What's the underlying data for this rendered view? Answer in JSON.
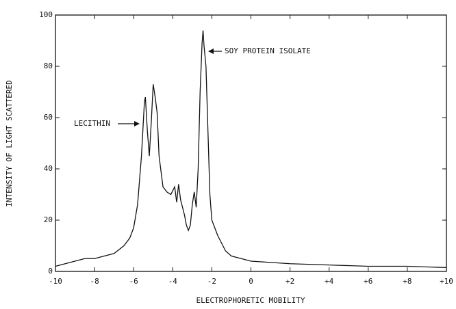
{
  "chart_data": {
    "type": "line",
    "xlabel": "ELECTROPHORETIC MOBILITY",
    "ylabel": "INTENSITY OF LIGHT SCATTERED",
    "annotations": [
      "LECITHIN",
      "SOY PROTEIN ISOLATE"
    ],
    "x": [
      -10,
      -9.5,
      -9,
      -8.5,
      -8,
      -7.5,
      -7,
      -6.5,
      -6.2,
      -6,
      -5.8,
      -5.6,
      -5.45,
      -5.4,
      -5.3,
      -5.2,
      -5.1,
      -5.0,
      -4.9,
      -4.8,
      -4.7,
      -4.5,
      -4.3,
      -4.1,
      -3.9,
      -3.8,
      -3.7,
      -3.6,
      -3.5,
      -3.4,
      -3.3,
      -3.2,
      -3.1,
      -3.0,
      -2.9,
      -2.8,
      -2.7,
      -2.6,
      -2.5,
      -2.45,
      -2.4,
      -2.3,
      -2.2,
      -2.1,
      -2,
      -1.7,
      -1.3,
      -1,
      -0.5,
      0,
      1,
      2,
      4,
      6,
      8,
      10
    ],
    "series": [
      {
        "color": "#111111",
        "values": [
          2,
          3,
          4,
          5,
          5,
          6,
          7,
          10,
          13,
          17,
          26,
          45,
          66,
          68,
          55,
          45,
          58,
          73,
          68,
          62,
          45,
          33,
          31,
          30,
          33,
          27,
          34,
          28,
          25,
          22,
          18,
          16,
          18,
          26,
          31,
          25,
          40,
          70,
          89,
          94,
          88,
          80,
          55,
          30,
          20,
          14,
          8,
          6,
          5,
          4,
          3.5,
          3,
          2.5,
          2,
          2,
          1.5
        ]
      }
    ],
    "xlim": [
      -10,
      10
    ],
    "xticks": [
      -10,
      -8,
      -6,
      -4,
      -2,
      0,
      {
        "value": 2,
        "label": "+2"
      },
      {
        "value": 4,
        "label": "+4"
      },
      {
        "value": 6,
        "label": "+6"
      },
      {
        "value": 8,
        "label": "+8"
      },
      {
        "value": 10,
        "label": "+10"
      }
    ],
    "ylim": [
      0,
      100
    ],
    "yticks": [
      0,
      20,
      40,
      60,
      80,
      100
    ]
  }
}
